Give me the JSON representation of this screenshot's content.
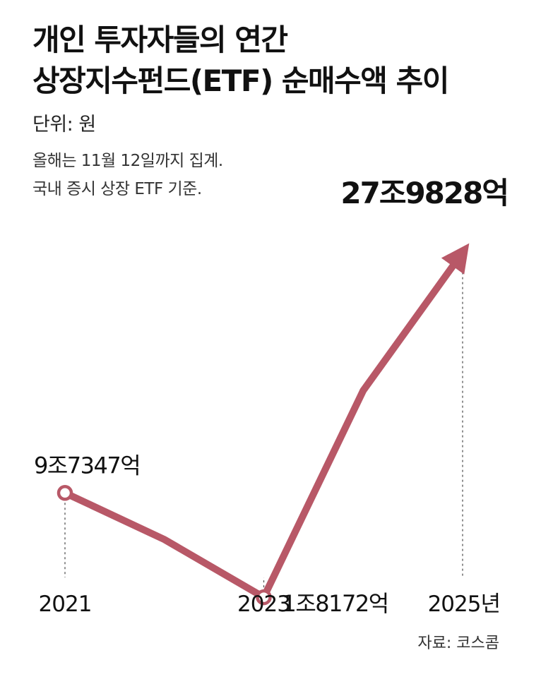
{
  "title_lines": [
    "개인 투자자들의 연간",
    "상장지수펀드(ETF) 순매수액 추이"
  ],
  "unit": "단위: 원",
  "notes": [
    "올해는 11월 12일까지 집계.",
    "국내 증시 상장 ETF 기준."
  ],
  "source": "자료: 코스콤",
  "colors": {
    "line": "#b85867",
    "guide": "#555555"
  },
  "chart_data": {
    "type": "line",
    "title": "개인 투자자들의 연간 상장지수펀드(ETF) 순매수액 추이",
    "unit": "원",
    "x": [
      2021,
      2022,
      2023,
      2024,
      2025
    ],
    "values": [
      97347,
      62000,
      18172,
      175000,
      279828
    ],
    "value_unit": "억 원",
    "tick_labels": [
      "2021",
      "2023",
      "2025년"
    ],
    "tick_x": [
      2021,
      2023,
      2025
    ],
    "labeled_points": [
      {
        "x": 2021,
        "value": 97347,
        "label": "9조7347억"
      },
      {
        "x": 2023,
        "value": 18172,
        "label": "1조8172억"
      },
      {
        "x": 2025,
        "value": 279828,
        "label": "27조9828억",
        "emphasis": true
      }
    ],
    "ylim": [
      0,
      300000
    ],
    "arrow_at_end": true,
    "grid": false
  }
}
